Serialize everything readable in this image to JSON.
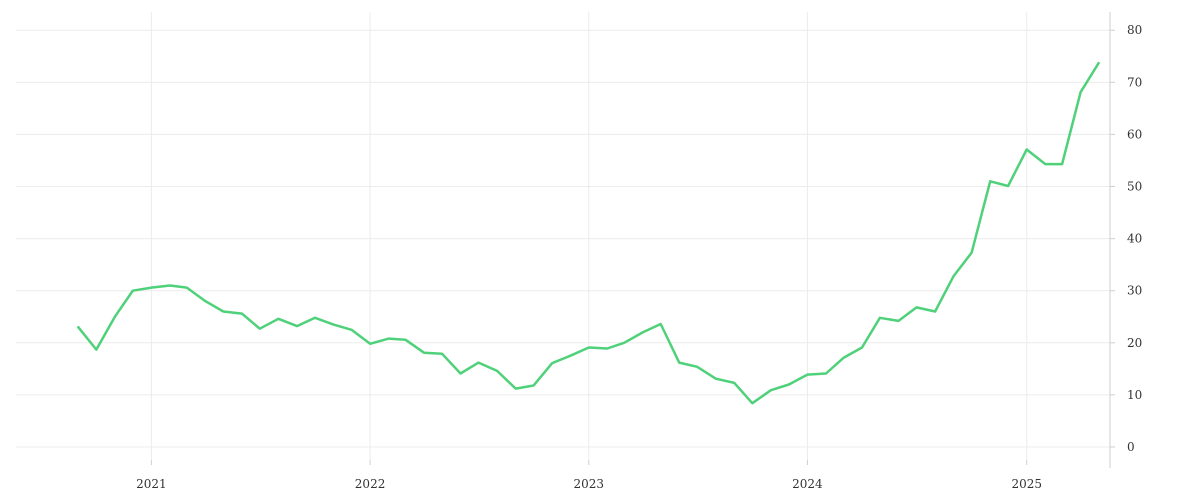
{
  "chart_data": {
    "type": "line",
    "title": "",
    "xlabel": "",
    "ylabel": "",
    "x_axis": {
      "type": "date",
      "range": [
        "2020-05-20",
        "2025-05-20"
      ],
      "ticks": [
        {
          "date": "2021-01-01",
          "label": "2021"
        },
        {
          "date": "2022-01-01",
          "label": "2022"
        },
        {
          "date": "2023-01-01",
          "label": "2023"
        },
        {
          "date": "2024-01-01",
          "label": "2024"
        },
        {
          "date": "2025-01-01",
          "label": "2025"
        }
      ]
    },
    "y_axis": {
      "position": "right",
      "range": [
        -2.5,
        83.5
      ],
      "ticks": [
        0,
        10,
        20,
        30,
        40,
        50,
        60,
        70,
        80
      ]
    },
    "grid": true,
    "legend": "none",
    "series": [
      {
        "color": "#4fd17a",
        "x": [
          "2020-09-01",
          "2020-10-01",
          "2020-11-01",
          "2020-12-01",
          "2021-01-01",
          "2021-02-01",
          "2021-03-01",
          "2021-04-01",
          "2021-05-01",
          "2021-06-01",
          "2021-07-01",
          "2021-08-01",
          "2021-09-01",
          "2021-10-01",
          "2021-11-01",
          "2021-12-01",
          "2022-01-01",
          "2022-02-01",
          "2022-03-01",
          "2022-04-01",
          "2022-05-01",
          "2022-06-01",
          "2022-07-01",
          "2022-08-01",
          "2022-09-01",
          "2022-10-01",
          "2022-11-01",
          "2022-12-01",
          "2023-01-01",
          "2023-02-01",
          "2023-03-01",
          "2023-04-01",
          "2023-05-01",
          "2023-06-01",
          "2023-07-01",
          "2023-08-01",
          "2023-09-01",
          "2023-10-01",
          "2023-11-01",
          "2023-12-01",
          "2024-01-01",
          "2024-02-01",
          "2024-03-01",
          "2024-04-01",
          "2024-05-01",
          "2024-06-01",
          "2024-07-01",
          "2024-08-01",
          "2024-09-01",
          "2024-10-01",
          "2024-11-01",
          "2024-12-01",
          "2025-01-01",
          "2025-02-01",
          "2025-03-01",
          "2025-04-01",
          "2025-05-01"
        ],
        "y": [
          23.0,
          18.7,
          25.0,
          30.0,
          30.6,
          31.0,
          30.6,
          28.0,
          26.0,
          25.6,
          22.7,
          24.6,
          23.2,
          24.8,
          23.5,
          22.5,
          19.8,
          20.8,
          20.6,
          18.1,
          17.9,
          14.1,
          16.2,
          14.6,
          11.2,
          11.8,
          16.1,
          17.5,
          19.1,
          18.9,
          20.0,
          22.0,
          23.6,
          16.2,
          15.4,
          13.1,
          12.3,
          8.4,
          10.9,
          12.0,
          13.9,
          14.1,
          17.1,
          19.1,
          24.8,
          24.2,
          26.8,
          26.0,
          32.8,
          37.3,
          51.0,
          50.1,
          57.1,
          54.3,
          54.3,
          68.1,
          73.7
        ]
      }
    ]
  }
}
